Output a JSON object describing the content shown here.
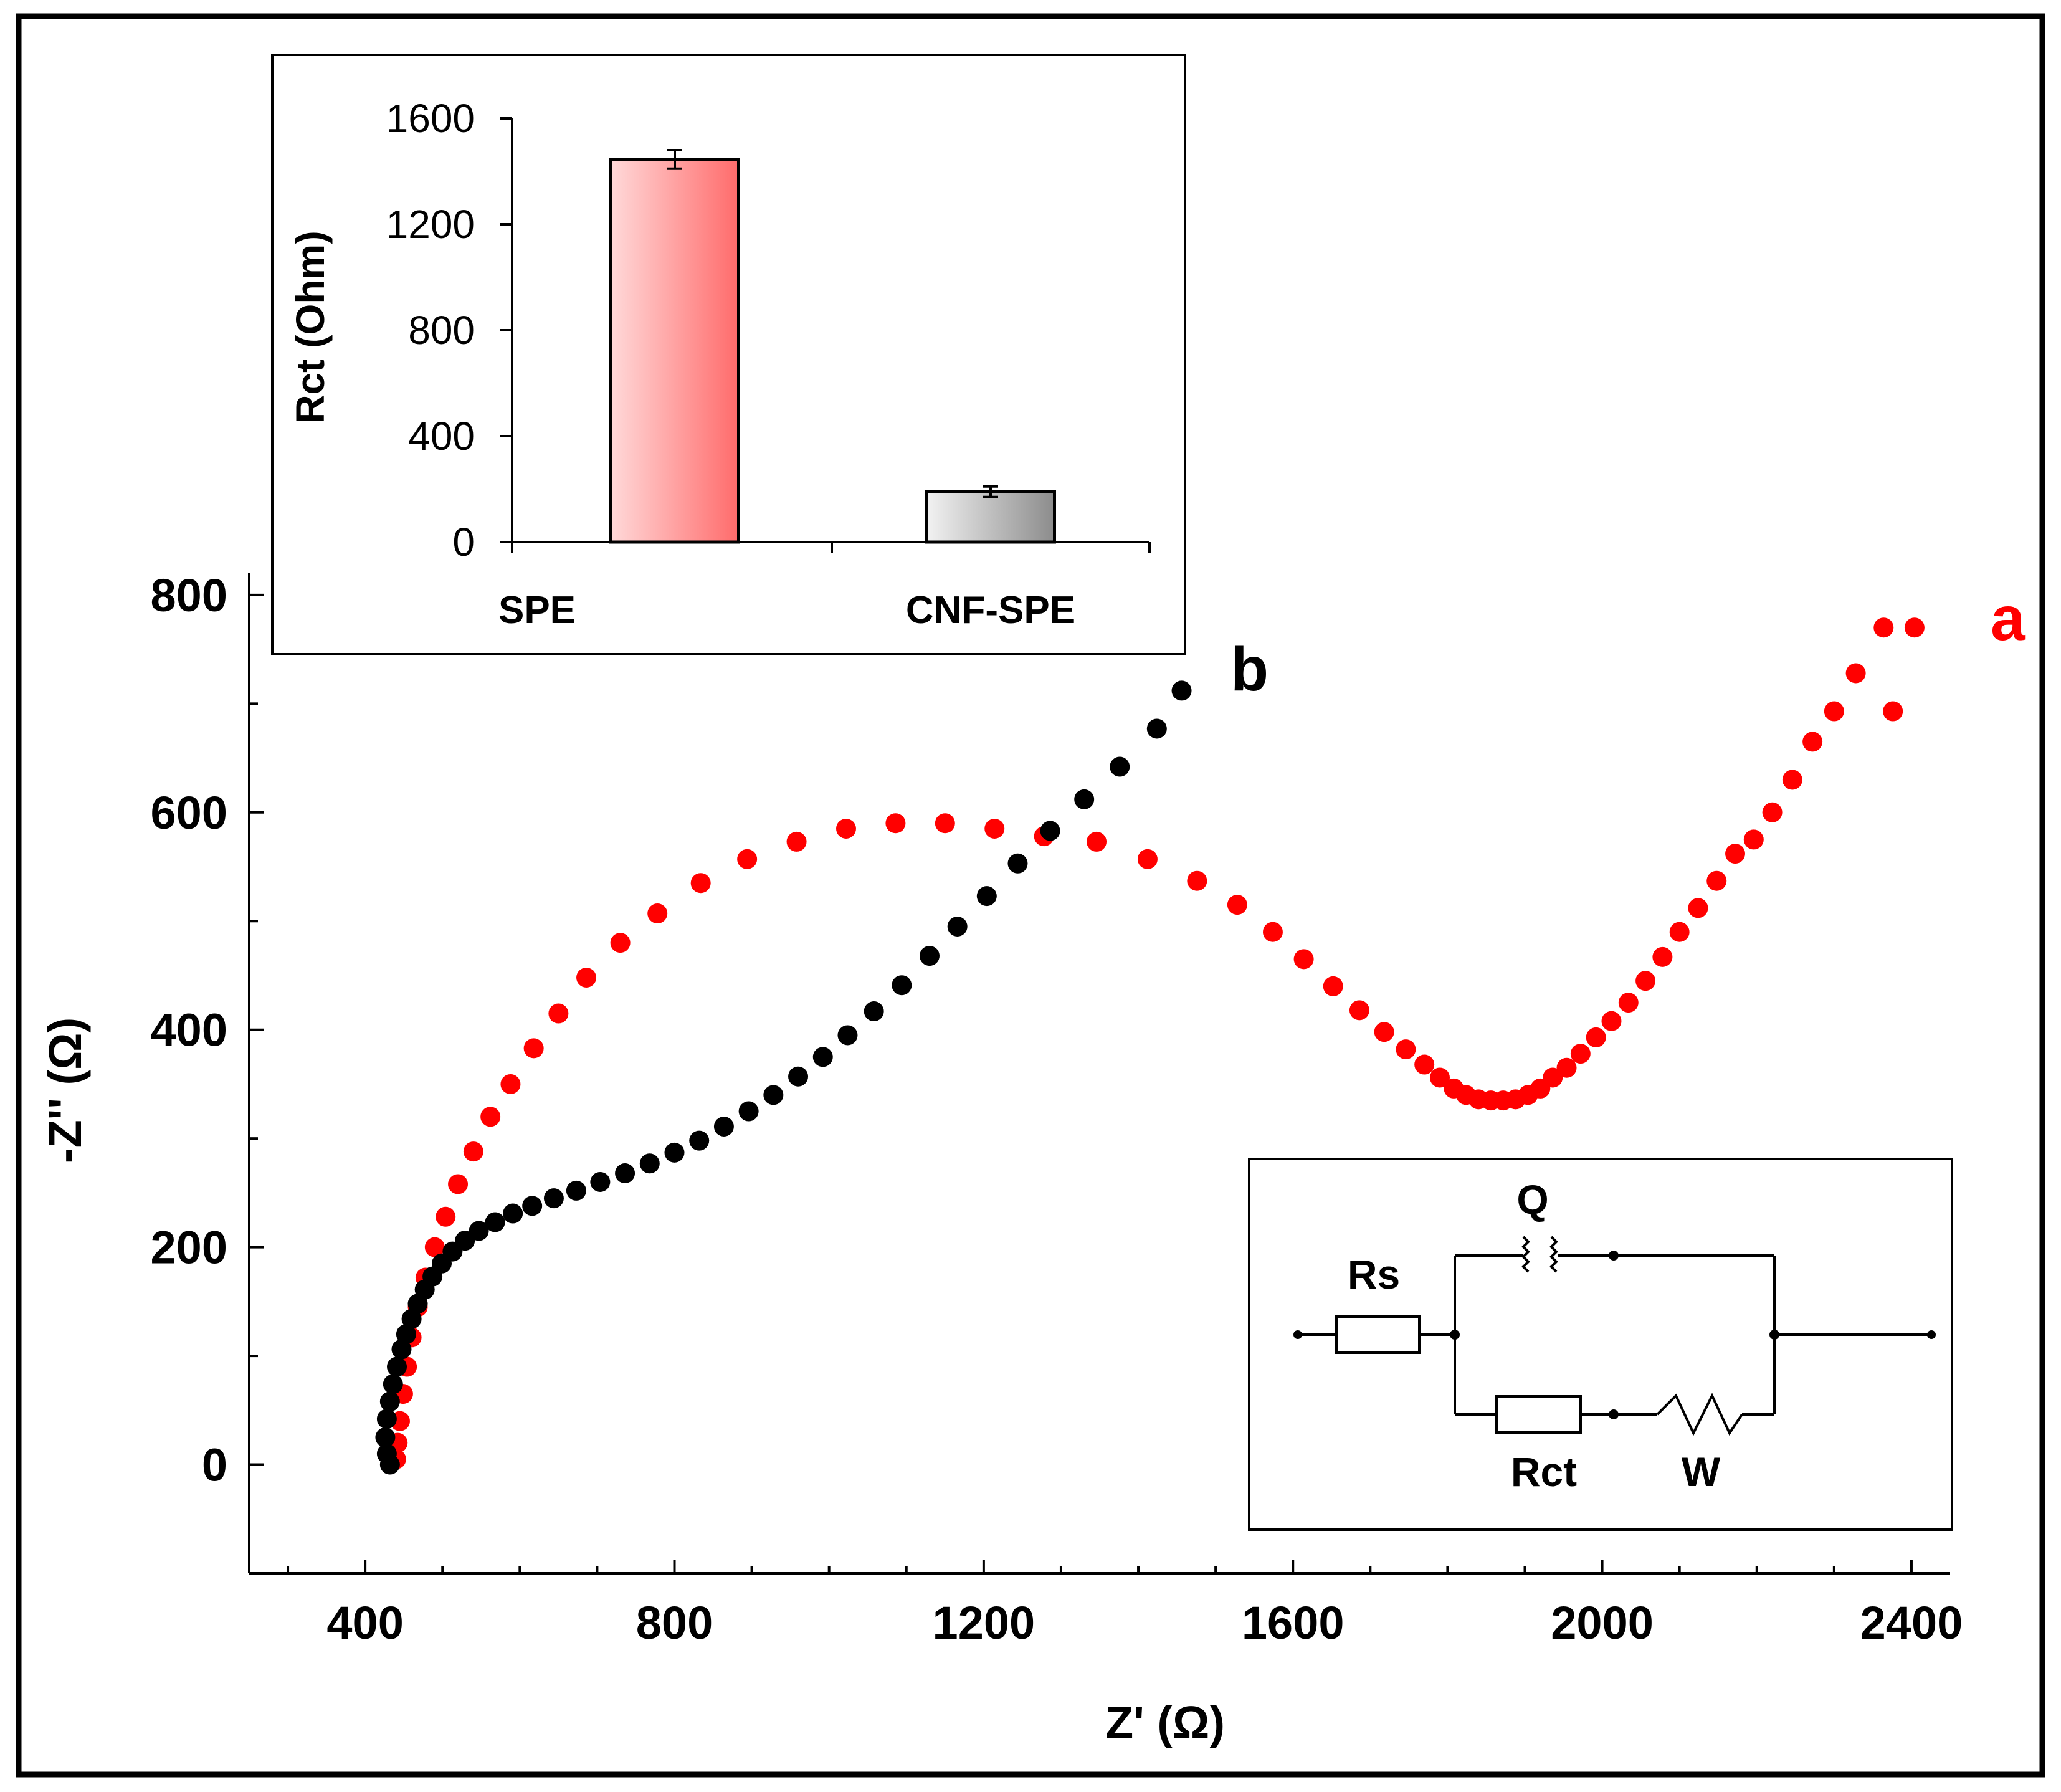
{
  "main_chart": {
    "title": "",
    "type": "scatter",
    "xlabel": "Z' (Ω)",
    "ylabel": "-Z'' (Ω)",
    "x_ticks": [
      "400",
      "800",
      "1200",
      "1600",
      "2000",
      "2400"
    ],
    "y_ticks": [
      "0",
      "200",
      "400",
      "600",
      "800"
    ],
    "series_labels": {
      "a": "a",
      "b": "b"
    }
  },
  "inset_chart": {
    "ylabel": "Rct (Ohm)",
    "y_ticks": [
      "0",
      "400",
      "800",
      "1200",
      "1600"
    ],
    "categories": [
      "SPE",
      "CNF-SPE"
    ]
  },
  "circuit": {
    "rs_label": "Rs",
    "q_label": "Q",
    "rct_label": "Rct",
    "w_label": "W"
  },
  "colors": {
    "series_a": "#ff0000",
    "series_b": "#000000",
    "bar_spe_light": "#ffd9d9",
    "bar_spe_dark": "#ff6b6b",
    "bar_cnf_light": "#f2f2f2",
    "bar_cnf_dark": "#8c8c8c"
  },
  "chart_data": [
    {
      "type": "scatter",
      "title": "",
      "xlabel": "Z' (Ω)",
      "ylabel": "-Z'' (Ω)",
      "xlim": [
        250,
        2450
      ],
      "ylim": [
        -100,
        820
      ],
      "grid": false,
      "series": [
        {
          "name": "a",
          "x": [
            440,
            442,
            445,
            449,
            454,
            460,
            468,
            478,
            490,
            504,
            520,
            540,
            562,
            588,
            618,
            650,
            686,
            730,
            778,
            834,
            894,
            958,
            1022,
            1086,
            1150,
            1214,
            1278,
            1346,
            1412,
            1476,
            1528,
            1574,
            1614,
            1652,
            1686,
            1718,
            1746,
            1770,
            1790,
            1808,
            1824,
            1840,
            1856,
            1872,
            1888,
            1904,
            1920,
            1936,
            1954,
            1972,
            1992,
            2012,
            2034,
            2056,
            2078,
            2100,
            2124,
            2148,
            2172,
            2196,
            2220,
            2246,
            2272,
            2300,
            2328,
            2364,
            2376,
            2404
          ],
          "y": [
            5,
            20,
            40,
            65,
            90,
            117,
            145,
            172,
            200,
            228,
            258,
            288,
            320,
            350,
            383,
            415,
            448,
            480,
            507,
            535,
            557,
            573,
            585,
            590,
            590,
            585,
            578,
            573,
            557,
            537,
            515,
            490,
            465,
            440,
            418,
            398,
            382,
            368,
            356,
            346,
            340,
            336,
            335,
            335,
            336,
            340,
            346,
            356,
            365,
            378,
            393,
            408,
            425,
            445,
            467,
            490,
            512,
            537,
            562,
            575,
            600,
            630,
            665,
            693,
            728,
            770,
            693,
            770
          ]
        },
        {
          "name": "b",
          "x": [
            432,
            428,
            426,
            428,
            432,
            436,
            441,
            447,
            453,
            460,
            468,
            477,
            487,
            499,
            513,
            529,
            547,
            568,
            591,
            616,
            644,
            673,
            704,
            736,
            768,
            800,
            832,
            864,
            896,
            928,
            960,
            992,
            1024,
            1058,
            1094,
            1130,
            1166,
            1204,
            1244,
            1286,
            1330,
            1376,
            1424,
            1456
          ],
          "y": [
            0,
            10,
            25,
            42,
            58,
            74,
            90,
            106,
            120,
            134,
            148,
            161,
            173,
            185,
            196,
            206,
            215,
            223,
            231,
            238,
            245,
            252,
            260,
            268,
            277,
            287,
            298,
            311,
            325,
            340,
            357,
            375,
            395,
            417,
            441,
            468,
            495,
            523,
            553,
            583,
            612,
            642,
            677,
            712
          ]
        }
      ]
    },
    {
      "type": "bar",
      "title": "",
      "xlabel": "",
      "ylabel": "Rct (Ohm)",
      "categories": [
        "SPE",
        "CNF-SPE"
      ],
      "values": [
        1445,
        190
      ],
      "error": [
        35,
        20
      ],
      "ylim": [
        0,
        1600
      ],
      "grid": false
    }
  ]
}
